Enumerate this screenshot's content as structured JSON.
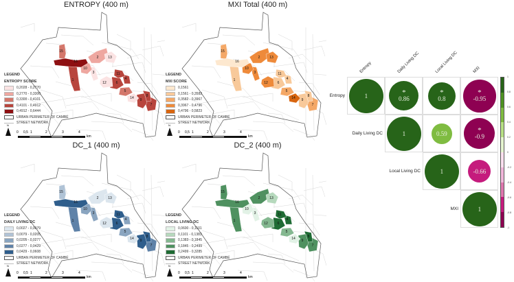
{
  "maps": [
    {
      "title": "ENTROPY (400 m)",
      "legend_title": "LEGEND",
      "legend_subtitle": "ENTROPY SCORE",
      "classes": [
        {
          "range": "0,2028 - 0,2770",
          "color": "#fbe3e3"
        },
        {
          "range": "0,2770 - 0,3300",
          "color": "#eea7a0"
        },
        {
          "range": "0,3300 - 0,4101",
          "color": "#d4776b"
        },
        {
          "range": "0,4101 - 0,4912",
          "color": "#b8453d"
        },
        {
          "range": "0,4912 - 0,6444",
          "color": "#8e1012"
        }
      ],
      "zone_classes": {
        "1": 3,
        "2": 1,
        "3": 0,
        "4": 3,
        "5": 2,
        "6": 3,
        "7": 3,
        "8": 3,
        "9": 3,
        "10": 1,
        "11": 3,
        "12": 0,
        "13": 0,
        "14": 0,
        "15": 2,
        "16": 4
      }
    },
    {
      "title": "MXI Total (400 m)",
      "legend_title": "LEGEND",
      "legend_subtitle": "MXI SCORE",
      "classes": [
        {
          "range": "0,1561",
          "color": "#fde8cf"
        },
        {
          "range": "0,1561 - 0,3582",
          "color": "#f8c99a"
        },
        {
          "range": "0,3582 - 0,3967",
          "color": "#f4a867"
        },
        {
          "range": "0,3967 - 0,4796",
          "color": "#ee8a3a"
        },
        {
          "range": "0,4796 - 0,5823",
          "color": "#d8650f"
        }
      ],
      "zone_classes": {
        "1": 1,
        "2": 3,
        "3": 3,
        "4": 1,
        "5": 2,
        "6": 1,
        "7": 2,
        "8": 1,
        "9": 1,
        "10": 3,
        "11": 1,
        "12": 3,
        "13": 3,
        "14": 4,
        "15": 2,
        "16": 0
      }
    },
    {
      "title": "DC_1 (400 m)",
      "legend_title": "LEGEND",
      "legend_subtitle": "DAILY LIVING DC",
      "classes": [
        {
          "range": "0,0027 - 0,0079",
          "color": "#dce6ee"
        },
        {
          "range": "0,0079 - 0,0205",
          "color": "#b0c3d6"
        },
        {
          "range": "0,0205 - 0,0277",
          "color": "#8aa5c0"
        },
        {
          "range": "0,0277 - 0,0429",
          "color": "#5f82a8"
        },
        {
          "range": "0,0429 - 0,0608",
          "color": "#2f5e8c"
        }
      ],
      "zone_classes": {
        "1": 3,
        "2": 0,
        "3": 2,
        "4": 2,
        "5": 2,
        "6": 4,
        "7": 3,
        "8": 4,
        "9": 4,
        "10": 2,
        "11": 4,
        "12": 0,
        "13": 0,
        "14": 0,
        "15": 1,
        "16": 4
      }
    },
    {
      "title": "DC_2 (400 m)",
      "legend_title": "LEGEND",
      "legend_subtitle": "LOCAL LIVING DC",
      "classes": [
        {
          "range": "0,0600 - 0,1101",
          "color": "#e2f2e6"
        },
        {
          "range": "0,1101 - 0,1383",
          "color": "#b6d9bd"
        },
        {
          "range": "0,1383 - 0,1845",
          "color": "#84b890"
        },
        {
          "range": "0,1845 - 0,2499",
          "color": "#4f9160"
        },
        {
          "range": "0,2499 - 0,3285",
          "color": "#1f6b34"
        }
      ],
      "zone_classes": {
        "1": 3,
        "2": 3,
        "3": 0,
        "4": 4,
        "5": 2,
        "6": 4,
        "7": 3,
        "8": 4,
        "9": 3,
        "10": 0,
        "11": 4,
        "12": 2,
        "13": 1,
        "14": 0,
        "15": 3,
        "16": 3
      }
    }
  ],
  "common_legend": {
    "perimeter": "URBAN PERIMETER OF CAMBÉ",
    "streets": "STREET NETWORK",
    "north": "N",
    "scale_ticks": [
      "0",
      "0,5",
      "1",
      "2",
      "3",
      "4"
    ],
    "scale_unit": "km"
  },
  "chart_data": {
    "type": "heatmap",
    "subtype": "correlation-circle-matrix (upper triangle)",
    "title": "",
    "variables": [
      "Entropy",
      "Daily Living DC",
      "Local Living DC",
      "MXI"
    ],
    "matrix": [
      [
        1,
        0.86,
        0.8,
        -0.95
      ],
      [
        null,
        1,
        0.59,
        -0.9
      ],
      [
        null,
        null,
        1,
        -0.66
      ],
      [
        null,
        null,
        null,
        1
      ]
    ],
    "significant": [
      [
        false,
        true,
        true,
        true
      ],
      [
        null,
        false,
        false,
        true
      ],
      [
        null,
        null,
        false,
        false
      ],
      [
        null,
        null,
        null,
        false
      ]
    ],
    "significance_marker": "*",
    "colorbar": {
      "range": [
        -1,
        1
      ],
      "ticks": [
        "1",
        "0.8",
        "0.6",
        "0.4",
        "0.2",
        "0",
        "-0.2",
        "-0.4",
        "-0.6",
        "-0.8",
        "-1"
      ],
      "colors_top_to_bottom": [
        "#276419",
        "#4d9221",
        "#7fbc41",
        "#b8e186",
        "#e6f5d0",
        "#fde0ef",
        "#f1b6da",
        "#de77ae",
        "#c51b7d",
        "#8e0152"
      ]
    }
  },
  "zone_labels": [
    "1",
    "2",
    "3",
    "4",
    "5",
    "6",
    "7",
    "8",
    "9",
    "10",
    "11",
    "12",
    "13",
    "14",
    "15",
    "16"
  ]
}
